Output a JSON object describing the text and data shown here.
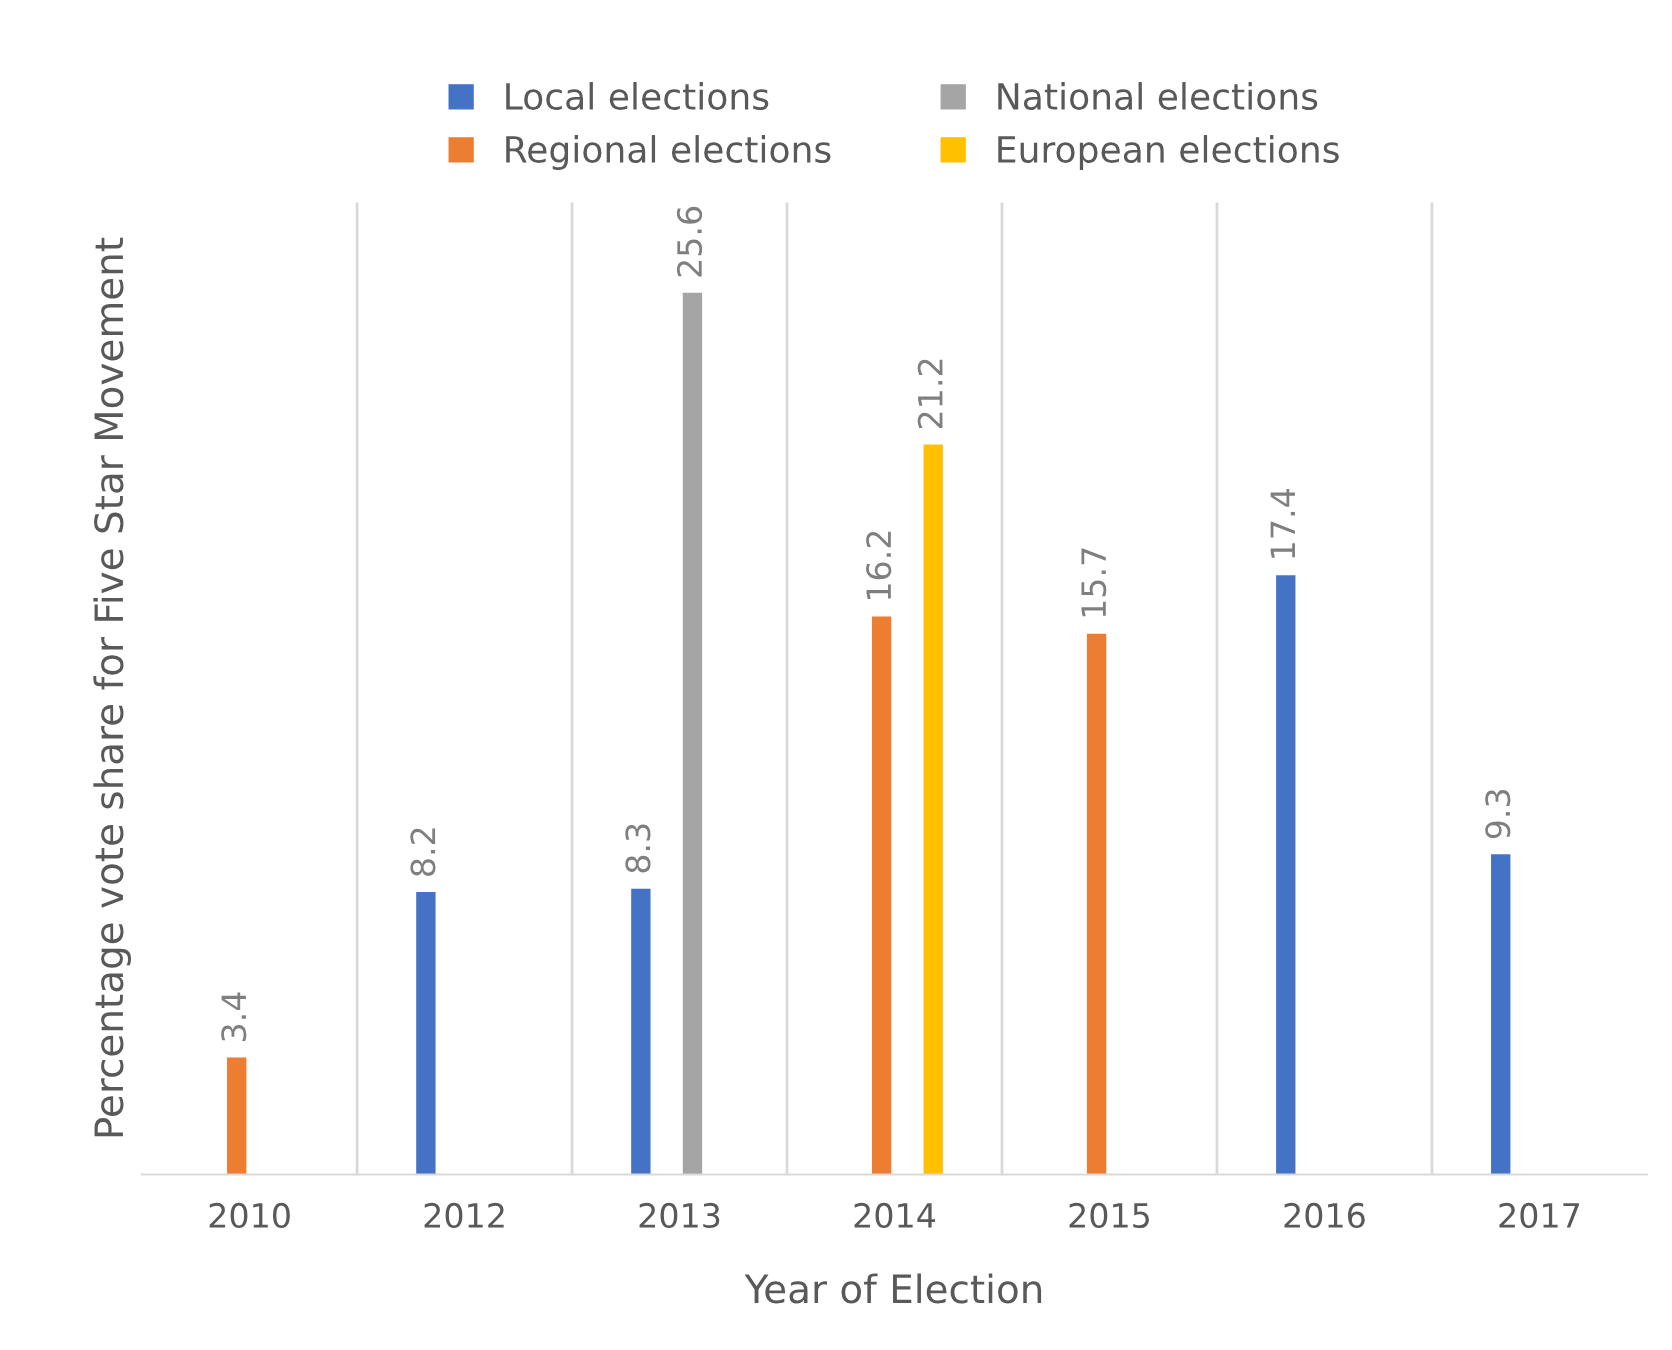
{
  "chart_data": {
    "type": "bar",
    "xlabel": "Year of Election",
    "ylabel": "Percentage vote share for Five Star Movement",
    "categories": [
      "2010",
      "2012",
      "2013",
      "2014",
      "2015",
      "2016",
      "2017"
    ],
    "series": [
      {
        "name": "Local elections",
        "color": "#4472c4",
        "values": [
          null,
          8.2,
          8.3,
          null,
          null,
          17.4,
          9.3
        ]
      },
      {
        "name": "Regional elections",
        "color": "#ed7d31",
        "values": [
          3.4,
          null,
          null,
          16.2,
          15.7,
          null,
          null
        ]
      },
      {
        "name": "National elections",
        "color": "#a5a5a5",
        "values": [
          null,
          null,
          25.6,
          null,
          null,
          null,
          null
        ]
      },
      {
        "name": "European elections",
        "color": "#ffc000",
        "values": [
          null,
          null,
          null,
          21.2,
          null,
          null,
          null
        ]
      }
    ],
    "data_labels": true,
    "grid": "x",
    "legend": "top"
  }
}
